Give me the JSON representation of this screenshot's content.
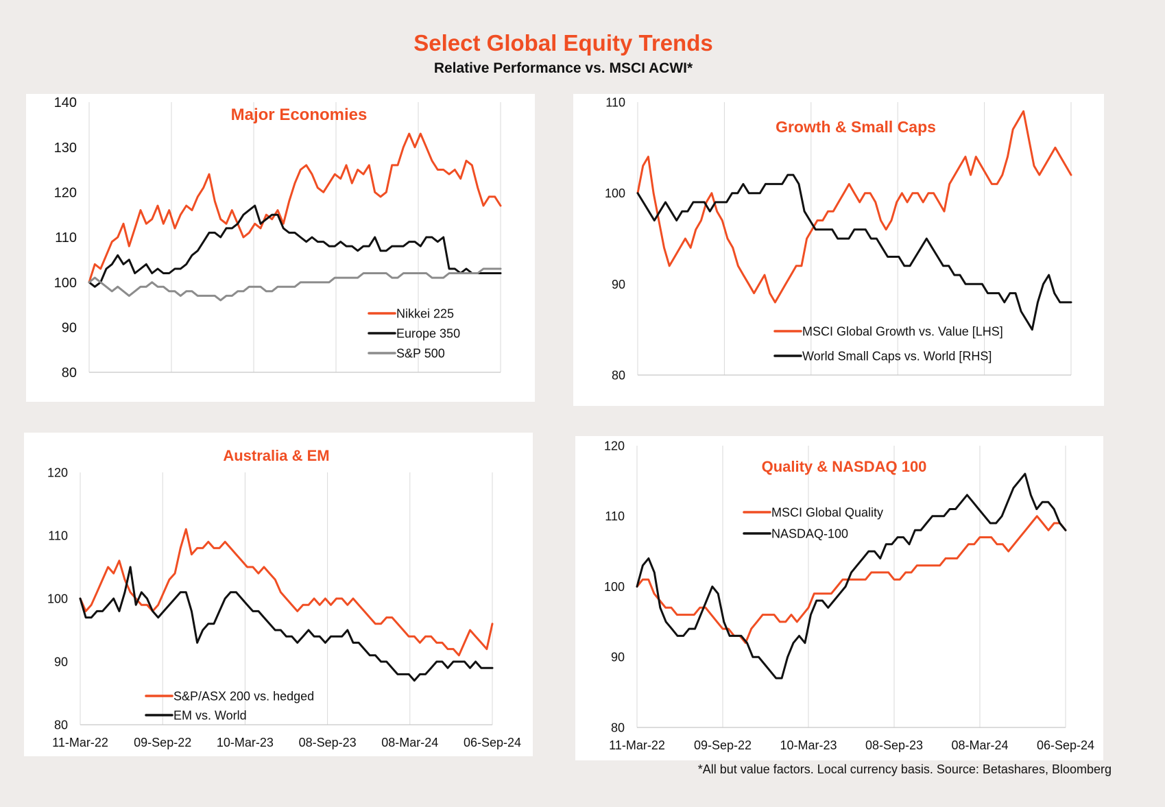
{
  "header": {
    "title": "Select Global Equity Trends",
    "subtitle": "Relative Performance vs. MSCI ACWI*"
  },
  "footnote": "*All but value factors. Local currency basis.  Source: Betashares, Bloomberg",
  "colors": {
    "orange": "#f04e23",
    "black": "#111111",
    "grey": "#8c8c8c",
    "title_orange": "#f04e23"
  },
  "chart_data": [
    {
      "type": "line",
      "title": "Major Economies",
      "ylim": [
        80,
        140
      ],
      "yticks": [
        80,
        90,
        100,
        110,
        120,
        130,
        140
      ],
      "x_tick_labels": [],
      "legend_placement": "bottom-right",
      "series": [
        {
          "name": "Nikkei 225",
          "color": "#f04e23",
          "values": [
            100,
            104,
            103,
            106,
            109,
            110,
            113,
            108,
            112,
            116,
            113,
            114,
            117,
            113,
            116,
            112,
            115,
            117,
            116,
            119,
            121,
            124,
            118,
            114,
            113,
            116,
            113,
            110,
            111,
            113,
            112,
            115,
            114,
            116,
            113,
            118,
            122,
            125,
            126,
            124,
            121,
            120,
            122,
            124,
            123,
            126,
            122,
            125,
            124,
            126,
            120,
            119,
            120,
            126,
            126,
            130,
            133,
            130,
            133,
            130,
            127,
            125,
            125,
            124,
            125,
            123,
            127,
            126,
            121,
            117,
            119,
            119,
            117
          ]
        },
        {
          "name": "Europe 350",
          "color": "#111111",
          "values": [
            100,
            99,
            100,
            103,
            104,
            106,
            104,
            105,
            102,
            103,
            104,
            102,
            103,
            102,
            102,
            103,
            103,
            104,
            106,
            107,
            109,
            111,
            111,
            110,
            112,
            112,
            113,
            115,
            116,
            117,
            113,
            114,
            115,
            115,
            112,
            111,
            111,
            110,
            109,
            110,
            109,
            109,
            108,
            108,
            109,
            108,
            108,
            107,
            108,
            108,
            110,
            107,
            107,
            108,
            108,
            108,
            109,
            109,
            108,
            110,
            110,
            109,
            110,
            103,
            103,
            102,
            103,
            102,
            102,
            102,
            102,
            102,
            102
          ]
        },
        {
          "name": "S&P 500",
          "color": "#8c8c8c",
          "values": [
            100,
            101,
            100,
            99,
            98,
            99,
            98,
            97,
            98,
            99,
            99,
            100,
            99,
            99,
            98,
            98,
            97,
            98,
            98,
            97,
            97,
            97,
            97,
            96,
            97,
            97,
            98,
            98,
            99,
            99,
            99,
            98,
            98,
            99,
            99,
            99,
            99,
            100,
            100,
            100,
            100,
            100,
            100,
            101,
            101,
            101,
            101,
            101,
            102,
            102,
            102,
            102,
            102,
            101,
            101,
            102,
            102,
            102,
            102,
            102,
            101,
            101,
            101,
            102,
            102,
            102,
            102,
            102,
            102,
            103,
            103,
            103,
            103
          ]
        }
      ]
    },
    {
      "type": "line",
      "title": "Growth & Small Caps",
      "ylim": [
        80,
        110
      ],
      "yticks": [
        80,
        90,
        100,
        110
      ],
      "x_tick_labels": [],
      "legend_placement": "bottom",
      "series": [
        {
          "name": "MSCI Global Growth vs. Value [LHS]",
          "color": "#f04e23",
          "values": [
            100,
            103,
            104,
            100,
            97,
            94,
            92,
            93,
            94,
            95,
            94,
            96,
            97,
            99,
            100,
            98,
            97,
            95,
            94,
            92,
            91,
            90,
            89,
            90,
            91,
            89,
            88,
            89,
            90,
            91,
            92,
            92,
            95,
            96,
            97,
            97,
            98,
            98,
            99,
            100,
            101,
            100,
            99,
            100,
            100,
            99,
            97,
            96,
            97,
            99,
            100,
            99,
            100,
            100,
            99,
            100,
            100,
            99,
            98,
            101,
            102,
            103,
            104,
            102,
            104,
            103,
            102,
            101,
            101,
            102,
            104,
            107,
            108,
            109,
            106,
            103,
            102,
            103,
            104,
            105,
            104,
            103,
            102
          ]
        },
        {
          "name": "World Small Caps vs. World [RHS]",
          "color": "#111111",
          "values": [
            100,
            99,
            98,
            97,
            98,
            99,
            98,
            97,
            98,
            98,
            99,
            99,
            99,
            98,
            99,
            99,
            99,
            100,
            100,
            101,
            100,
            100,
            100,
            101,
            101,
            101,
            101,
            102,
            102,
            101,
            98,
            97,
            96,
            96,
            96,
            96,
            95,
            95,
            95,
            96,
            96,
            96,
            95,
            95,
            94,
            93,
            93,
            93,
            92,
            92,
            93,
            94,
            95,
            94,
            93,
            92,
            92,
            91,
            91,
            90,
            90,
            90,
            90,
            89,
            89,
            89,
            88,
            89,
            89,
            87,
            86,
            85,
            88,
            90,
            91,
            89,
            88,
            88,
            88
          ]
        }
      ]
    },
    {
      "type": "line",
      "title": "Australia & EM",
      "ylim": [
        80,
        120
      ],
      "yticks": [
        80,
        90,
        100,
        110,
        120
      ],
      "x_tick_labels": [
        "11-Mar-22",
        "09-Sep-22",
        "10-Mar-23",
        "08-Sep-23",
        "08-Mar-24",
        "06-Sep-24"
      ],
      "legend_placement": "bottom-left",
      "series": [
        {
          "name": "S&P/ASX 200 vs. hedged",
          "color": "#f04e23",
          "values": [
            100,
            98,
            99,
            101,
            103,
            105,
            104,
            106,
            103,
            101,
            100,
            99,
            99,
            98,
            99,
            101,
            103,
            104,
            108,
            111,
            107,
            108,
            108,
            109,
            108,
            108,
            109,
            108,
            107,
            106,
            105,
            105,
            104,
            105,
            104,
            103,
            101,
            100,
            99,
            98,
            99,
            99,
            100,
            99,
            100,
            99,
            100,
            100,
            99,
            100,
            99,
            98,
            97,
            96,
            96,
            97,
            97,
            96,
            95,
            94,
            94,
            93,
            94,
            94,
            93,
            93,
            92,
            92,
            91,
            93,
            95,
            94,
            93,
            92,
            96
          ]
        },
        {
          "name": "EM vs. World",
          "color": "#111111",
          "values": [
            100,
            97,
            97,
            98,
            98,
            99,
            100,
            98,
            101,
            105,
            99,
            101,
            100,
            98,
            97,
            98,
            99,
            100,
            101,
            101,
            98,
            93,
            95,
            96,
            96,
            98,
            100,
            101,
            101,
            100,
            99,
            98,
            98,
            97,
            96,
            95,
            95,
            94,
            94,
            93,
            94,
            95,
            94,
            94,
            93,
            94,
            94,
            94,
            95,
            93,
            93,
            92,
            91,
            91,
            90,
            90,
            89,
            88,
            88,
            88,
            87,
            88,
            88,
            89,
            90,
            90,
            89,
            90,
            90,
            90,
            89,
            90,
            89,
            89,
            89
          ]
        }
      ]
    },
    {
      "type": "line",
      "title": "Quality & NASDAQ 100",
      "ylim": [
        80,
        120
      ],
      "yticks": [
        80,
        90,
        100,
        110,
        120
      ],
      "x_tick_labels": [
        "11-Mar-22",
        "09-Sep-22",
        "10-Mar-23",
        "08-Sep-23",
        "08-Mar-24",
        "06-Sep-24"
      ],
      "legend_placement": "top-left",
      "series": [
        {
          "name": "MSCI Global Quality",
          "color": "#f04e23",
          "values": [
            100,
            101,
            101,
            99,
            98,
            97,
            97,
            96,
            96,
            96,
            96,
            97,
            97,
            96,
            95,
            94,
            94,
            93,
            93,
            92,
            94,
            95,
            96,
            96,
            96,
            95,
            95,
            96,
            95,
            96,
            97,
            99,
            99,
            99,
            99,
            100,
            101,
            101,
            101,
            101,
            101,
            102,
            102,
            102,
            102,
            101,
            101,
            102,
            102,
            103,
            103,
            103,
            103,
            103,
            104,
            104,
            104,
            105,
            106,
            106,
            107,
            107,
            107,
            106,
            106,
            105,
            106,
            107,
            108,
            109,
            110,
            109,
            108,
            109,
            109,
            108
          ]
        },
        {
          "name": "NASDAQ-100",
          "color": "#111111",
          "values": [
            100,
            103,
            104,
            102,
            97,
            95,
            94,
            93,
            93,
            94,
            94,
            96,
            98,
            100,
            99,
            95,
            93,
            93,
            93,
            92,
            90,
            90,
            89,
            88,
            87,
            87,
            90,
            92,
            93,
            92,
            96,
            98,
            98,
            97,
            98,
            99,
            100,
            102,
            103,
            104,
            105,
            105,
            104,
            106,
            106,
            107,
            107,
            106,
            108,
            108,
            109,
            110,
            110,
            110,
            111,
            111,
            112,
            113,
            112,
            111,
            110,
            109,
            109,
            110,
            112,
            114,
            115,
            116,
            113,
            111,
            112,
            112,
            111,
            109,
            108
          ]
        }
      ]
    }
  ]
}
